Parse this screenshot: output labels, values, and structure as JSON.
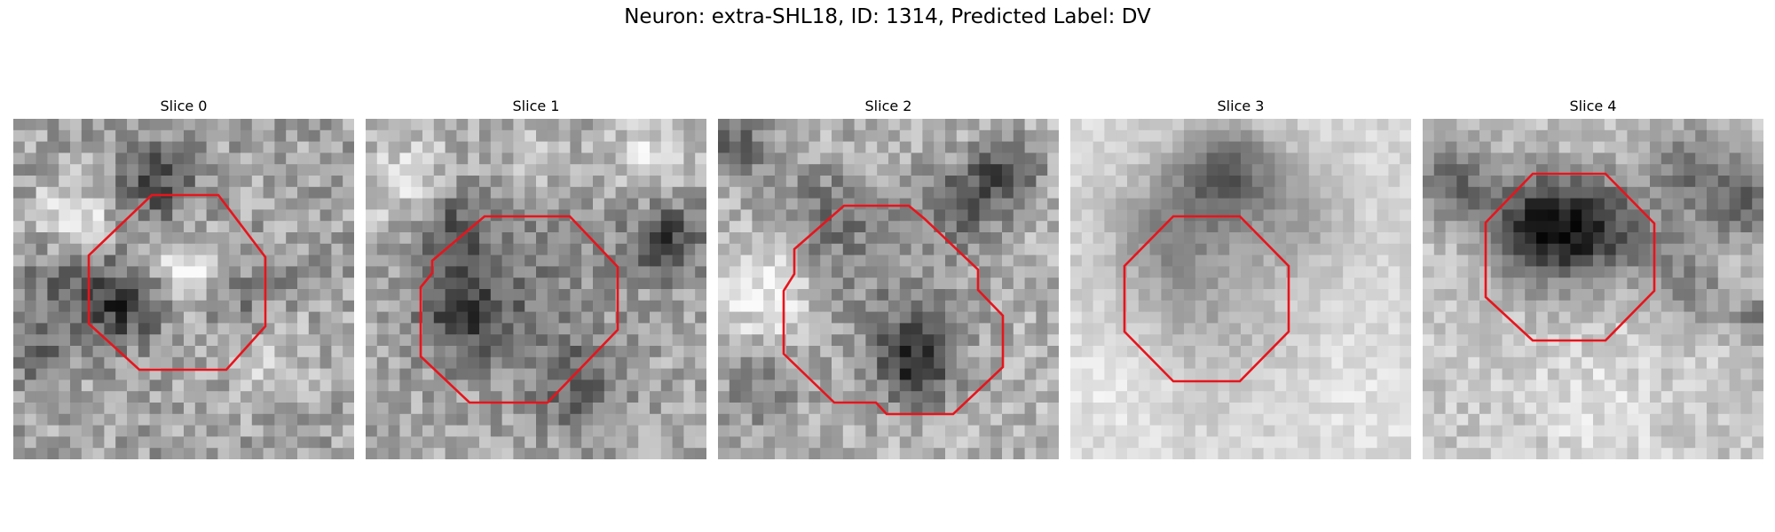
{
  "figure": {
    "title": "Neuron: extra-SHL18, ID: 1314, Predicted Label: DV"
  },
  "panels": [
    {
      "title": "Slice 0"
    },
    {
      "title": "Slice 1"
    },
    {
      "title": "Slice 2"
    },
    {
      "title": "Slice 3"
    },
    {
      "title": "Slice 4"
    }
  ],
  "colors": {
    "contour": "#e8141c",
    "background": "#ffffff"
  }
}
